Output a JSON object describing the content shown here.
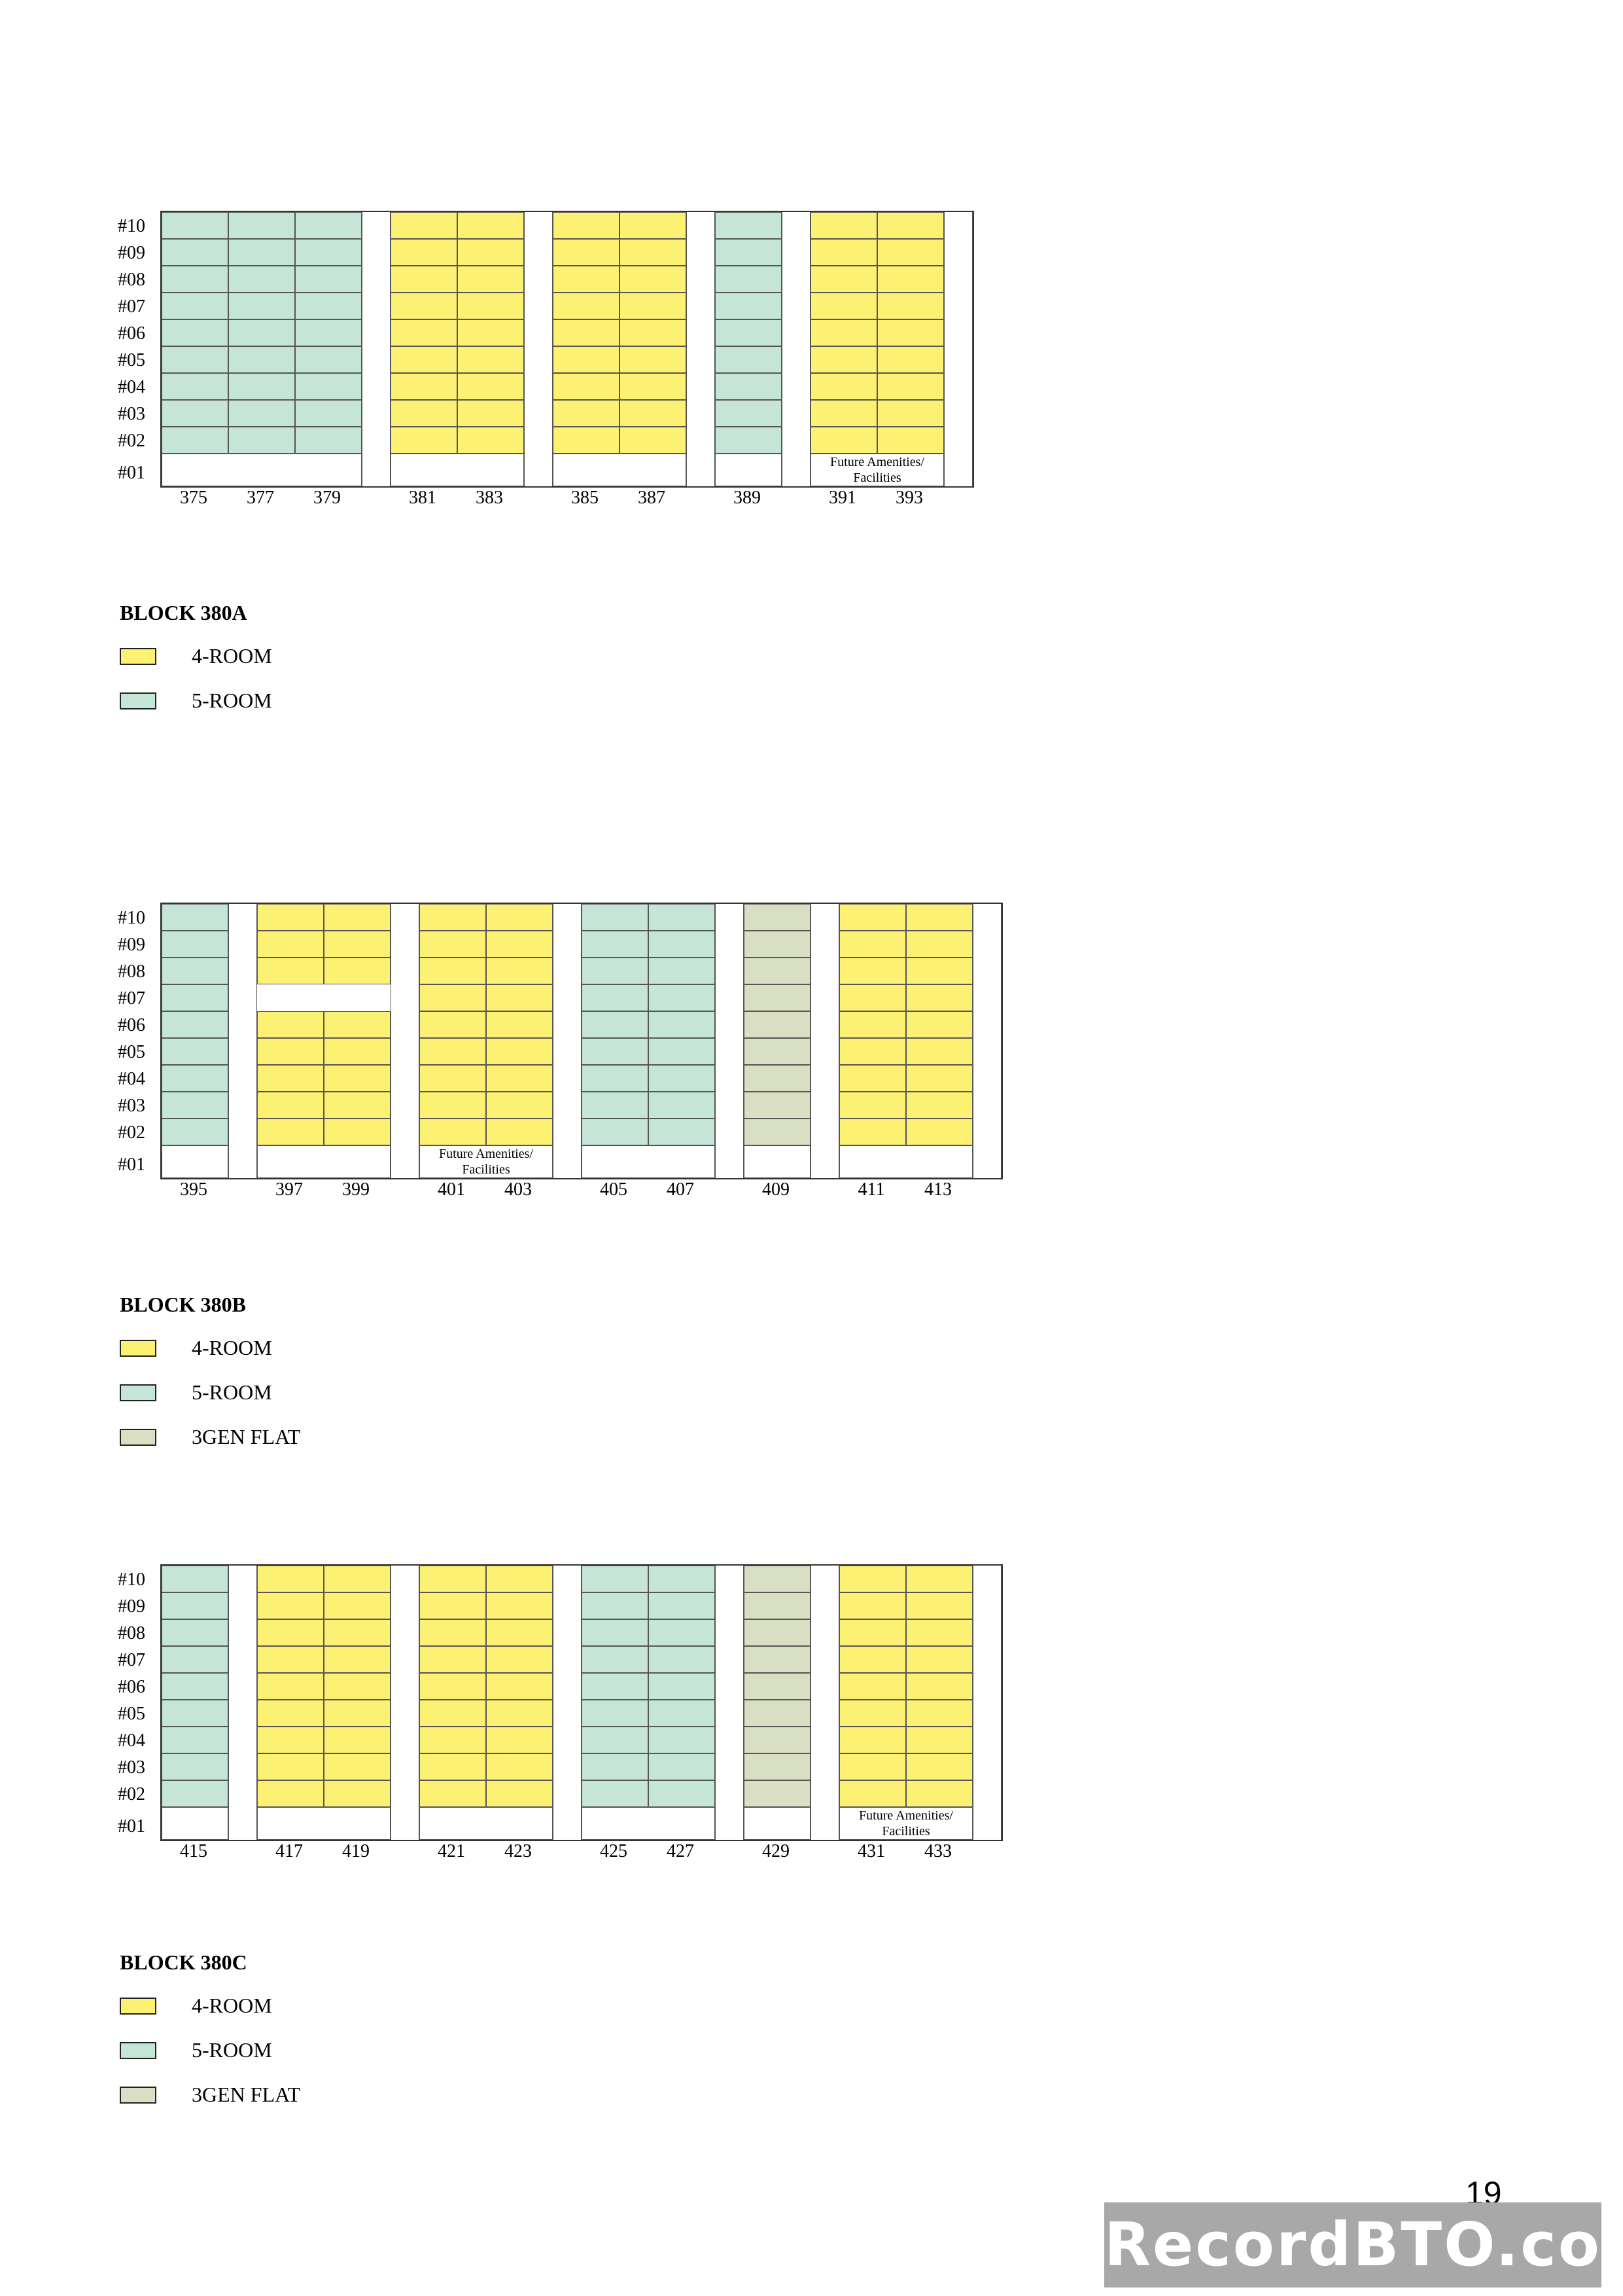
{
  "floors": [
    "#10",
    "#09",
    "#08",
    "#07",
    "#06",
    "#05",
    "#04",
    "#03",
    "#02",
    "#01"
  ],
  "colors": {
    "4-ROOM": "#fdf173",
    "5-ROOM": "#c5e6d6",
    "3GEN FLAT": "#d9dfc3"
  },
  "blocks": [
    {
      "name": "BLOCK 380A",
      "legend": [
        {
          "type": "t4",
          "label": "4-ROOM"
        },
        {
          "type": "t5",
          "label": "5-ROOM"
        }
      ],
      "stacks": [
        {
          "unit": "375",
          "type": "t5"
        },
        {
          "unit": "377",
          "type": "t5"
        },
        {
          "unit": "379",
          "type": "t5"
        },
        {
          "gap": true
        },
        {
          "unit": "381",
          "type": "t4"
        },
        {
          "unit": "383",
          "type": "t4"
        },
        {
          "gap": true
        },
        {
          "unit": "385",
          "type": "t4"
        },
        {
          "unit": "387",
          "type": "t4"
        },
        {
          "gap": true
        },
        {
          "unit": "389",
          "type": "t5"
        },
        {
          "gap": true
        },
        {
          "unit": "391",
          "type": "t4"
        },
        {
          "unit": "393",
          "type": "t4"
        },
        {
          "gap": true
        }
      ],
      "facilities": [
        {
          "label": "Future Amenities/\nFacilities",
          "stacks": [
            "391",
            "393"
          ]
        }
      ],
      "empty_floors": []
    },
    {
      "name": "BLOCK 380B",
      "legend": [
        {
          "type": "t4",
          "label": "4-ROOM"
        },
        {
          "type": "t5",
          "label": "5-ROOM"
        },
        {
          "type": "t3",
          "label": "3GEN FLAT"
        }
      ],
      "stacks": [
        {
          "unit": "395",
          "type": "t5"
        },
        {
          "gap": true
        },
        {
          "unit": "397",
          "type": "t4"
        },
        {
          "unit": "399",
          "type": "t4"
        },
        {
          "gap": true
        },
        {
          "unit": "401",
          "type": "t4"
        },
        {
          "unit": "403",
          "type": "t4"
        },
        {
          "gap": true
        },
        {
          "unit": "405",
          "type": "t5"
        },
        {
          "unit": "407",
          "type": "t5"
        },
        {
          "gap": true
        },
        {
          "unit": "409",
          "type": "t3"
        },
        {
          "gap": true
        },
        {
          "unit": "411",
          "type": "t4"
        },
        {
          "unit": "413",
          "type": "t4"
        },
        {
          "gap": true
        }
      ],
      "facilities": [
        {
          "label": "Future Amenities/\nFacilities",
          "stacks": [
            "401",
            "403"
          ]
        }
      ],
      "empty_floors": [
        {
          "floor": "#07",
          "stacks": [
            "397",
            "399"
          ]
        }
      ]
    },
    {
      "name": "BLOCK 380C",
      "legend": [
        {
          "type": "t4",
          "label": "4-ROOM"
        },
        {
          "type": "t5",
          "label": "5-ROOM"
        },
        {
          "type": "t3",
          "label": "3GEN FLAT"
        }
      ],
      "stacks": [
        {
          "unit": "415",
          "type": "t5"
        },
        {
          "gap": true
        },
        {
          "unit": "417",
          "type": "t4"
        },
        {
          "unit": "419",
          "type": "t4"
        },
        {
          "gap": true
        },
        {
          "unit": "421",
          "type": "t4"
        },
        {
          "unit": "423",
          "type": "t4"
        },
        {
          "gap": true
        },
        {
          "unit": "425",
          "type": "t5"
        },
        {
          "unit": "427",
          "type": "t5"
        },
        {
          "gap": true
        },
        {
          "unit": "429",
          "type": "t3"
        },
        {
          "gap": true
        },
        {
          "unit": "431",
          "type": "t4"
        },
        {
          "unit": "433",
          "type": "t4"
        },
        {
          "gap": true
        }
      ],
      "facilities": [
        {
          "label": "Future Amenities/\nFacilities",
          "stacks": [
            "431",
            "433"
          ]
        }
      ],
      "empty_floors": []
    }
  ],
  "page_number": "19",
  "watermark": "RecordBTO.com"
}
